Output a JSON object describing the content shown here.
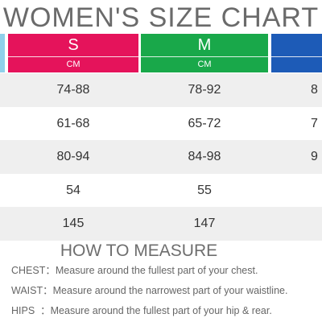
{
  "title": "WOMEN'S SIZE CHART",
  "sizes": [
    {
      "label": "S",
      "unit": "CM",
      "color": "#e5135b"
    },
    {
      "label": "M",
      "unit": "CM",
      "color": "#19a84a"
    },
    {
      "label": "",
      "unit": "",
      "color": "#1d5bb7"
    }
  ],
  "rows": [
    {
      "s": "74-88",
      "m": "78-92",
      "l": "8"
    },
    {
      "s": "61-68",
      "m": "65-72",
      "l": "7"
    },
    {
      "s": "80-94",
      "m": "84-98",
      "l": "9"
    },
    {
      "s": "54",
      "m": "55",
      "l": ""
    },
    {
      "s": "145",
      "m": "147",
      "l": ""
    }
  ],
  "how_to": {
    "heading": "HOW TO MEASURE",
    "items": [
      {
        "label": "CHEST",
        "sep": "：",
        "text": "Measure around the fullest part of your chest."
      },
      {
        "label": "WAIST",
        "sep": "：",
        "text": "Measure around the narrowest part of your waistline."
      },
      {
        "label": "HIPS",
        "sep": "  ：",
        "text": "Measure around the fullest part of your hip & rear."
      }
    ]
  }
}
